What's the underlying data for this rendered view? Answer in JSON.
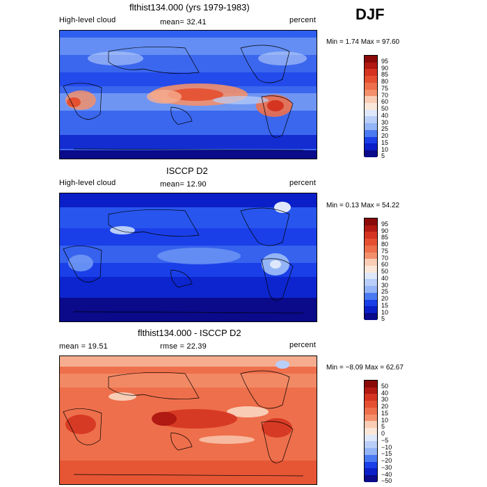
{
  "season": "DJF",
  "colors": {
    "abs_scale": [
      "#0a0a8a",
      "#0a1fc8",
      "#1a3fe8",
      "#2f5ff0",
      "#4a7af2",
      "#6f98f4",
      "#93b4f6",
      "#b9cef8",
      "#dfe8fb",
      "#fbe7d9",
      "#f9cdb5",
      "#f6ad8f",
      "#f3906b",
      "#ee6f4b",
      "#e45030",
      "#d43420",
      "#b01a12",
      "#8a0a0a"
    ],
    "diff_scale": [
      "#0a0a8a",
      "#0a1fc8",
      "#1a3fe8",
      "#2f5ff0",
      "#4a7af2",
      "#6f98f4",
      "#93b4f6",
      "#b9cef8",
      "#dfe8fb",
      "#fbe7d9",
      "#f9cdb5",
      "#f6ad8f",
      "#f3906b",
      "#ee6f4b",
      "#e45030",
      "#d43420",
      "#b01a12",
      "#8a0a0a"
    ]
  },
  "panels": [
    {
      "title": "flthist134.000 (yrs 1979-1983)",
      "variable": "High-level cloud",
      "stat1": "mean=  32.41",
      "stat2": "",
      "units": "percent",
      "minmax": "Min =   1.74 Max =  97.60",
      "ticks": [
        "95",
        "90",
        "85",
        "80",
        "75",
        "70",
        "60",
        "50",
        "40",
        "30",
        "25",
        "20",
        "15",
        "10",
        "5"
      ]
    },
    {
      "title": "ISCCP D2",
      "variable": "High-level cloud",
      "stat1": "mean=  12.90",
      "stat2": "",
      "units": "percent",
      "minmax": "Min =   0.13 Max =  54.22",
      "ticks": [
        "95",
        "90",
        "85",
        "80",
        "75",
        "70",
        "60",
        "50",
        "40",
        "30",
        "25",
        "20",
        "15",
        "10",
        "5"
      ]
    },
    {
      "title": "flthist134.000 - ISCCP D2",
      "variable": "mean =   19.51",
      "stat1": "rmse =   22.39",
      "stat2": "",
      "units": "percent",
      "minmax": "Min =  −8.09 Max =  62.67",
      "ticks": [
        "50",
        "40",
        "30",
        "20",
        "15",
        "10",
        "5",
        "0",
        "−5",
        "−10",
        "−15",
        "−20",
        "−30",
        "−40",
        "−50"
      ]
    }
  ]
}
